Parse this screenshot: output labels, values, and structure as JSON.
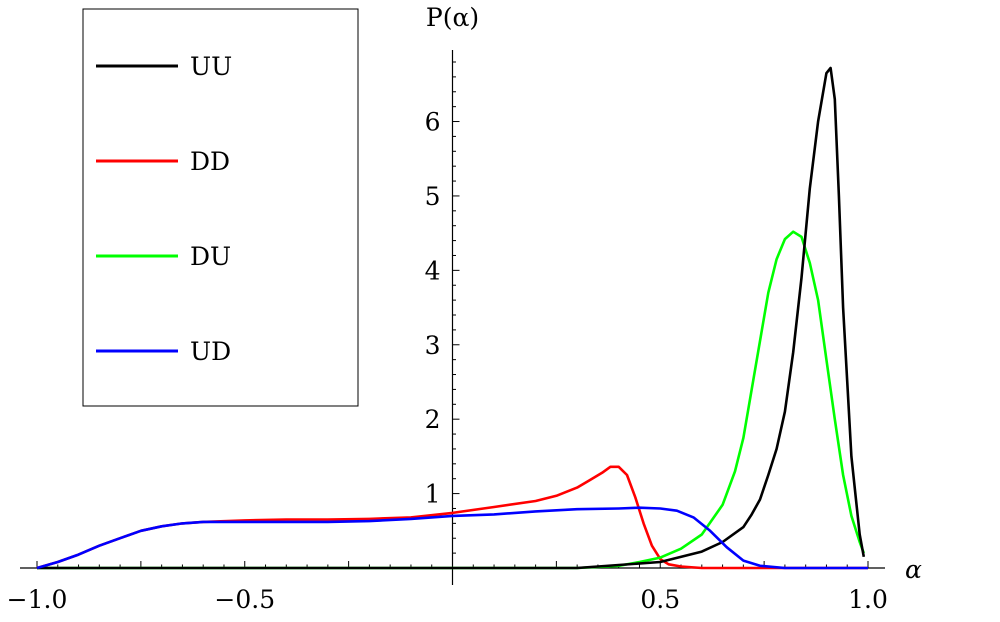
{
  "chart_data": {
    "type": "line",
    "title": "",
    "xlabel": "α",
    "ylabel": "P(α)",
    "xlim": [
      -1.0,
      1.0
    ],
    "ylim": [
      0,
      6.8
    ],
    "x_ticks": [
      {
        "value": -1.0,
        "label": "−1.0"
      },
      {
        "value": -0.5,
        "label": "−0.5"
      },
      {
        "value": 0.5,
        "label": "0.5"
      },
      {
        "value": 1.0,
        "label": "1.0"
      }
    ],
    "y_ticks": [
      {
        "value": 1,
        "label": "1"
      },
      {
        "value": 2,
        "label": "2"
      },
      {
        "value": 3,
        "label": "3"
      },
      {
        "value": 4,
        "label": "4"
      },
      {
        "value": 5,
        "label": "5"
      },
      {
        "value": 6,
        "label": "6"
      }
    ],
    "legend_position": "top-left",
    "grid": false,
    "series": [
      {
        "name": "UU",
        "color": "#000000",
        "x": [
          -1.0,
          0.3,
          0.5,
          0.6,
          0.65,
          0.7,
          0.72,
          0.74,
          0.76,
          0.78,
          0.8,
          0.82,
          0.84,
          0.86,
          0.88,
          0.9,
          0.91,
          0.92,
          0.93,
          0.94,
          0.96,
          0.98,
          0.99
        ],
        "y": [
          0.0,
          0.0,
          0.08,
          0.22,
          0.35,
          0.55,
          0.72,
          0.92,
          1.25,
          1.6,
          2.1,
          2.9,
          3.9,
          5.1,
          6.0,
          6.65,
          6.72,
          6.3,
          5.0,
          3.5,
          1.5,
          0.45,
          0.15
        ]
      },
      {
        "name": "DD",
        "color": "#ff0000",
        "x": [
          -1.0,
          -0.95,
          -0.9,
          -0.85,
          -0.8,
          -0.75,
          -0.7,
          -0.65,
          -0.6,
          -0.5,
          -0.4,
          -0.3,
          -0.2,
          -0.1,
          0.0,
          0.1,
          0.2,
          0.25,
          0.3,
          0.33,
          0.36,
          0.38,
          0.4,
          0.42,
          0.44,
          0.46,
          0.48,
          0.5,
          0.52,
          0.55,
          0.6,
          1.0
        ],
        "y": [
          0.0,
          0.08,
          0.18,
          0.3,
          0.4,
          0.5,
          0.56,
          0.6,
          0.62,
          0.64,
          0.65,
          0.65,
          0.66,
          0.68,
          0.74,
          0.82,
          0.9,
          0.97,
          1.08,
          1.18,
          1.28,
          1.36,
          1.36,
          1.25,
          0.95,
          0.6,
          0.3,
          0.12,
          0.05,
          0.02,
          0.0,
          0.0
        ]
      },
      {
        "name": "DU",
        "color": "#00ff00",
        "x": [
          -1.0,
          0.3,
          0.4,
          0.45,
          0.5,
          0.55,
          0.6,
          0.65,
          0.68,
          0.7,
          0.72,
          0.74,
          0.76,
          0.78,
          0.8,
          0.82,
          0.84,
          0.86,
          0.88,
          0.9,
          0.92,
          0.94,
          0.96,
          0.98,
          0.99
        ],
        "y": [
          0.0,
          0.0,
          0.03,
          0.08,
          0.14,
          0.26,
          0.45,
          0.85,
          1.3,
          1.75,
          2.4,
          3.05,
          3.7,
          4.15,
          4.42,
          4.52,
          4.45,
          4.1,
          3.6,
          2.8,
          2.0,
          1.25,
          0.7,
          0.35,
          0.2
        ]
      },
      {
        "name": "UD",
        "color": "#0000ff",
        "x": [
          -1.0,
          -0.95,
          -0.9,
          -0.85,
          -0.8,
          -0.75,
          -0.7,
          -0.65,
          -0.6,
          -0.5,
          -0.4,
          -0.3,
          -0.2,
          -0.1,
          0.0,
          0.1,
          0.2,
          0.3,
          0.4,
          0.45,
          0.5,
          0.54,
          0.58,
          0.62,
          0.66,
          0.7,
          0.74,
          0.8,
          1.0
        ],
        "y": [
          0.0,
          0.08,
          0.18,
          0.3,
          0.4,
          0.5,
          0.56,
          0.6,
          0.62,
          0.62,
          0.62,
          0.62,
          0.63,
          0.66,
          0.7,
          0.72,
          0.76,
          0.79,
          0.8,
          0.81,
          0.8,
          0.77,
          0.68,
          0.5,
          0.28,
          0.1,
          0.03,
          0.0,
          0.0
        ]
      }
    ]
  }
}
